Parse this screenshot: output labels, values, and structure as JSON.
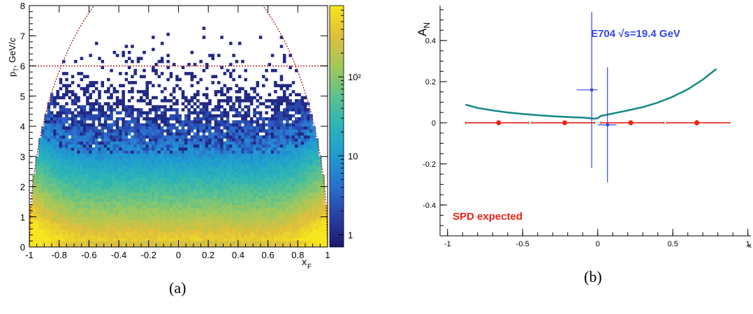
{
  "captions": {
    "a": "(a)",
    "b": "(b)"
  },
  "chart_data": [
    {
      "type": "heatmap",
      "panel": "a",
      "xlabel": "x",
      "xlabel_sub": "F",
      "ylabel": "p , GeV/c",
      "ylabel_sub": "T",
      "xlim": [
        -1,
        1
      ],
      "ylim": [
        0,
        8
      ],
      "xticks": [
        "-1",
        "-0.8",
        "-0.6",
        "-0.4",
        "-0.2",
        "0",
        "0.2",
        "0.4",
        "0.6",
        "0.8",
        "1"
      ],
      "xtick_values": [
        -1,
        -0.8,
        -0.6,
        -0.4,
        -0.2,
        0,
        0.2,
        0.4,
        0.6,
        0.8,
        1
      ],
      "yticks": [
        "0",
        "1",
        "2",
        "3",
        "4",
        "5",
        "6",
        "7",
        "8"
      ],
      "ytick_values": [
        0,
        1,
        2,
        3,
        4,
        5,
        6,
        7,
        8
      ],
      "z_scale": "log",
      "zlim": [
        0.7,
        800
      ],
      "colorbar_ticks": [
        "1",
        "10",
        "10²"
      ],
      "colorbar_values": [
        1,
        10,
        100
      ],
      "density_model": {
        "peak_count": 500,
        "pt_slope_per_gev": 1.45,
        "edge_enhancement": 3.0,
        "max_pt": 7.5
      },
      "cut_lines": {
        "horizontal_pt": 6.0,
        "kinematic_boundary": "pT_max = 9.7 * sqrt(1 - xF^2)",
        "color": "#b22222"
      },
      "colormap": [
        "#1b1a6e",
        "#283fa5",
        "#2a6fce",
        "#1e9bd2",
        "#2ab3b8",
        "#5cc28c",
        "#a3c85a",
        "#e0bf39",
        "#f6e61c"
      ]
    },
    {
      "type": "line",
      "panel": "b",
      "ylabel": "A",
      "ylabel_sub": "N",
      "xlabel": "x",
      "xlim": [
        -1.05,
        1.02
      ],
      "ylim": [
        -0.55,
        0.57
      ],
      "xticks": [
        "-1",
        "-0.5",
        "0",
        "0.5",
        "1"
      ],
      "xtick_values": [
        -1,
        -0.5,
        0,
        0.5,
        1
      ],
      "yticks": [
        "-0.4",
        "-0.2",
        "0",
        "0.2",
        "0.4"
      ],
      "ytick_values": [
        -0.4,
        -0.2,
        0,
        0.2,
        0.4
      ],
      "theory_curve": {
        "color": "#1a8a8a",
        "x": [
          -0.88,
          -0.8,
          -0.7,
          -0.6,
          -0.5,
          -0.4,
          -0.3,
          -0.2,
          -0.1,
          -0.02,
          0.0,
          0.02,
          0.1,
          0.2,
          0.3,
          0.4,
          0.5,
          0.6,
          0.7,
          0.79
        ],
        "y": [
          0.088,
          0.072,
          0.06,
          0.05,
          0.043,
          0.037,
          0.032,
          0.028,
          0.025,
          0.02,
          0.022,
          0.033,
          0.045,
          0.06,
          0.076,
          0.098,
          0.127,
          0.163,
          0.21,
          0.262
        ]
      },
      "series": [
        {
          "name": "E704 √s=19.4 GeV",
          "color": "#3344e8",
          "points": [
            {
              "x": -0.04,
              "y": 0.16,
              "xerr_low": 0.1,
              "xerr_high": 0.04,
              "yerr": 0.38
            },
            {
              "x": 0.065,
              "y": -0.01,
              "xerr_low": 0.065,
              "xerr_high": 0.06,
              "yerr": 0.28
            }
          ]
        },
        {
          "name": "SPD expected",
          "color": "#ee2211",
          "points": [
            {
              "x": -0.66,
              "y": 0.0,
              "xerr_low": 0.22,
              "xerr_high": 0.2,
              "yerr": 0.012
            },
            {
              "x": -0.22,
              "y": 0.0,
              "xerr_low": 0.22,
              "xerr_high": 0.2,
              "yerr": 0.01
            },
            {
              "x": 0.22,
              "y": 0.0,
              "xerr_low": 0.2,
              "xerr_high": 0.22,
              "yerr": 0.012
            },
            {
              "x": 0.66,
              "y": 0.0,
              "xerr_low": 0.2,
              "xerr_high": 0.22,
              "yerr": 0.014
            }
          ]
        }
      ]
    }
  ]
}
